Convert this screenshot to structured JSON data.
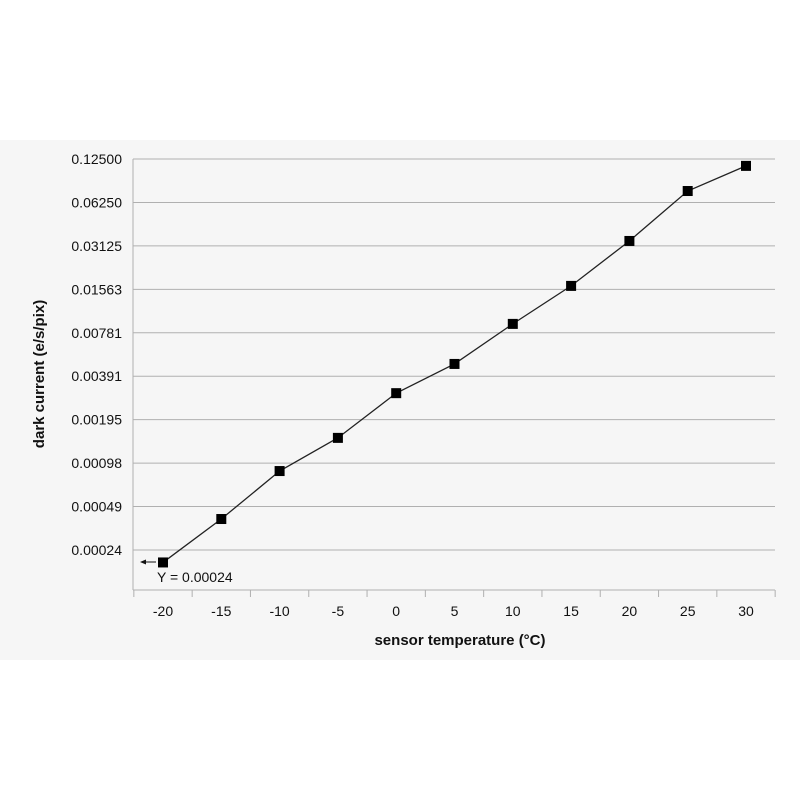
{
  "chart_data": {
    "type": "line",
    "title": "",
    "xlabel": "sensor temperature (°C)",
    "ylabel": "dark current (e/s/pix)",
    "y_scale": "log2",
    "x_ticks": [
      "-20",
      "-15",
      "-10",
      "-5",
      "0",
      "5",
      "10",
      "15",
      "20",
      "25",
      "30"
    ],
    "y_ticks": [
      "0.12500",
      "0.06250",
      "0.03125",
      "0.01563",
      "0.00781",
      "0.00391",
      "0.00195",
      "0.00098",
      "0.00049",
      "0.00024"
    ],
    "x": [
      -20,
      -15,
      -10,
      -5,
      0,
      5,
      10,
      15,
      20,
      25,
      30
    ],
    "y": [
      0.0002,
      0.0004,
      0.00086,
      0.00146,
      0.00298,
      0.00475,
      0.009,
      0.0165,
      0.0338,
      0.075,
      0.112
    ],
    "xlim": [
      -22.5,
      32.5
    ],
    "grid": "horizontal",
    "marker": "square",
    "line_color": "#222222",
    "marker_color": "#000000",
    "annotation": "Y = 0.00024"
  }
}
